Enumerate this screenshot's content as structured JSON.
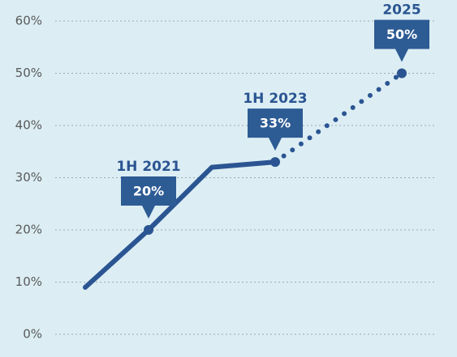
{
  "chart_data": {
    "type": "line",
    "categories": [
      null,
      "1H 2021",
      null,
      "1H 2023",
      null,
      "2025"
    ],
    "series": [
      {
        "color": "#2b5592",
        "style": "solid",
        "values": [
          9,
          20,
          32,
          33,
          null,
          null
        ],
        "value_labels": [
          null,
          "20%",
          null,
          "33%",
          null,
          null
        ]
      },
      {
        "color": "#2b5592",
        "style": "dotted",
        "values": [
          null,
          null,
          null,
          33,
          41.5,
          50
        ],
        "value_labels": [
          null,
          null,
          null,
          null,
          null,
          "50%"
        ]
      }
    ],
    "ylim": [
      0,
      60
    ],
    "yticks": [
      {
        "value": 0,
        "label": "0%"
      },
      {
        "value": 10,
        "label": "10%"
      },
      {
        "value": 20,
        "label": "20%"
      },
      {
        "value": 30,
        "label": "30%"
      },
      {
        "value": 40,
        "label": "40%"
      },
      {
        "value": 50,
        "label": "50%"
      },
      {
        "value": 60,
        "label": "60%"
      }
    ],
    "grid": true
  }
}
